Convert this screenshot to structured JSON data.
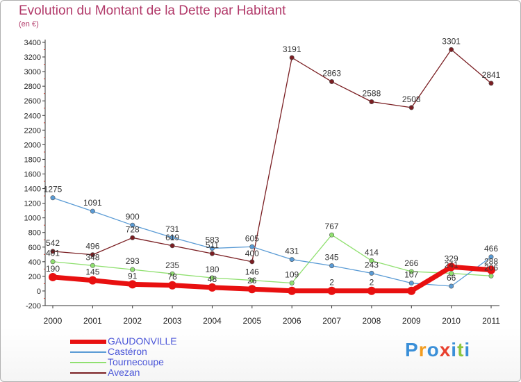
{
  "header": {
    "title": "Evolution du Montant de la Dette par Habitant",
    "subtitle": "(en €)"
  },
  "logo": {
    "letters": [
      "P",
      "r",
      "o",
      "x",
      "i",
      "t",
      "i"
    ],
    "colors": [
      "#3a8fd8",
      "#f39c1f",
      "#3a8fd8",
      "#e8402f",
      "#3a8fd8",
      "#8dc63f",
      "#3a8fd8"
    ]
  },
  "chart_data": {
    "type": "line",
    "title": "Evolution du Montant de la Dette par Habitant",
    "subtitle": "(en €)",
    "x": [
      "2000",
      "2001",
      "2002",
      "2003",
      "2004",
      "2005",
      "2006",
      "2007",
      "2008",
      "2009",
      "2010",
      "2011"
    ],
    "ylim": [
      -200,
      3400
    ],
    "yticks": [
      -200,
      0,
      200,
      400,
      600,
      800,
      1000,
      1200,
      1400,
      1600,
      1800,
      2000,
      2200,
      2400,
      2600,
      2800,
      3000,
      3200,
      3400
    ],
    "grid": false,
    "legend": "bottom-left",
    "series": [
      {
        "name": "GAUDONVILLE",
        "color": "#e81010",
        "values": [
          190,
          145,
          91,
          78,
          48,
          26,
          2,
          2,
          2,
          2,
          329,
          288
        ],
        "labels": [
          "190",
          "145",
          "91",
          "78",
          "48",
          "26",
          "",
          "2",
          "2",
          "",
          "329",
          "288"
        ]
      },
      {
        "name": "Castéron",
        "color": "#5a9bd5",
        "values": [
          1275,
          1091,
          900,
          731,
          583,
          605,
          431,
          345,
          243,
          107,
          66,
          466
        ],
        "labels": [
          "1275",
          "1091",
          "900",
          "731",
          "583",
          "605",
          "431",
          "345",
          "243",
          "107",
          "66",
          "466"
        ]
      },
      {
        "name": "Tournecoupe",
        "color": "#90e070",
        "values": [
          401,
          348,
          293,
          235,
          180,
          146,
          109,
          767,
          414,
          266,
          241,
          206
        ],
        "labels": [
          "401",
          "348",
          "293",
          "235",
          "180",
          "146",
          "109",
          "767",
          "414",
          "266",
          "241",
          "206"
        ]
      },
      {
        "name": "Avezan",
        "color": "#7a1e22",
        "values": [
          542,
          496,
          728,
          619,
          511,
          400,
          3191,
          2863,
          2588,
          2508,
          3301,
          2841
        ],
        "labels": [
          "542",
          "496",
          "728",
          "619",
          "511",
          "400",
          "3191",
          "2863",
          "2588",
          "2508",
          "3301",
          "2841"
        ]
      }
    ]
  }
}
